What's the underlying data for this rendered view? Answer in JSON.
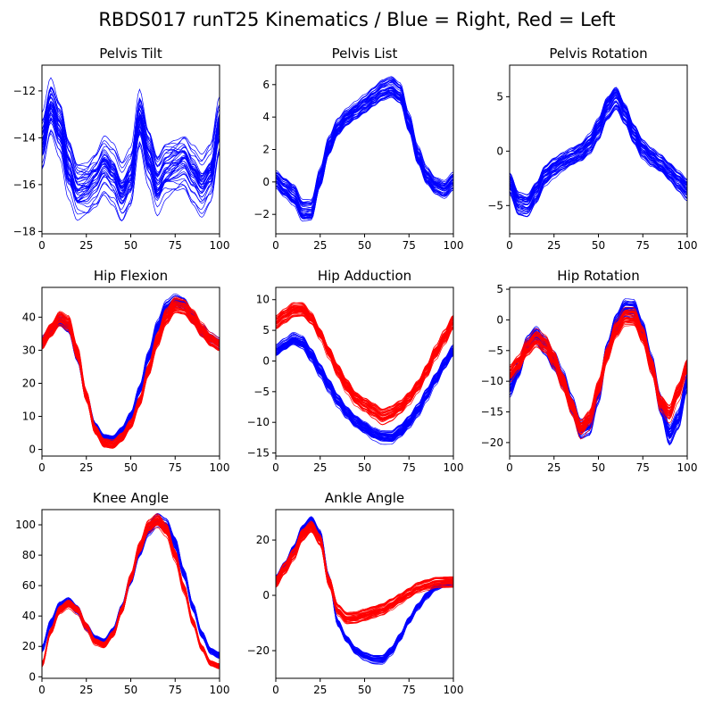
{
  "figure": {
    "title": "RBDS017 runT25 Kinematics / Blue = Right, Red = Left",
    "colors": {
      "right": "#0000ff",
      "left": "#ff0000"
    }
  },
  "chart_data": [
    {
      "type": "line",
      "title": "Pelvis Tilt",
      "xlim": [
        0,
        100
      ],
      "ylim": [
        -18.1,
        -10.9
      ],
      "xticks": [
        0,
        25,
        50,
        75,
        100
      ],
      "yticks": [
        -18,
        -16,
        -14,
        -12
      ],
      "grid": false,
      "n_trials": 40,
      "series": [
        {
          "color": "#0000ff",
          "x": [
            0,
            5,
            10,
            15,
            20,
            25,
            30,
            35,
            40,
            45,
            50,
            55,
            60,
            65,
            70,
            75,
            80,
            85,
            90,
            95,
            100
          ],
          "y": [
            -14.3,
            -12.7,
            -13.6,
            -15.3,
            -16.3,
            -16.2,
            -15.8,
            -15.2,
            -15.6,
            -16.4,
            -15.8,
            -13.2,
            -14.8,
            -16.0,
            -15.4,
            -15.2,
            -15.0,
            -15.6,
            -16.1,
            -15.6,
            -13.6
          ],
          "spread": 0.9
        }
      ]
    },
    {
      "type": "line",
      "title": "Pelvis List",
      "xlim": [
        0,
        100
      ],
      "ylim": [
        -3.2,
        7.2
      ],
      "xticks": [
        0,
        25,
        50,
        75,
        100
      ],
      "yticks": [
        -2,
        0,
        2,
        4,
        6
      ],
      "grid": false,
      "n_trials": 40,
      "series": [
        {
          "color": "#0000ff",
          "x": [
            0,
            5,
            10,
            15,
            20,
            25,
            30,
            35,
            40,
            45,
            50,
            55,
            60,
            65,
            70,
            75,
            80,
            85,
            90,
            95,
            100
          ],
          "y": [
            0.2,
            -0.3,
            -0.8,
            -1.8,
            -1.8,
            0.2,
            2.2,
            3.4,
            4.0,
            4.4,
            4.8,
            5.2,
            5.6,
            5.8,
            5.4,
            3.6,
            1.6,
            0.4,
            -0.2,
            -0.4,
            0.1
          ],
          "spread": 0.5
        }
      ]
    },
    {
      "type": "line",
      "title": "Pelvis Rotation",
      "xlim": [
        0,
        100
      ],
      "ylim": [
        -7.6,
        7.9
      ],
      "xticks": [
        0,
        25,
        50,
        75,
        100
      ],
      "yticks": [
        -5,
        0,
        5
      ],
      "grid": false,
      "n_trials": 40,
      "series": [
        {
          "color": "#0000ff",
          "x": [
            0,
            5,
            10,
            15,
            20,
            25,
            30,
            35,
            40,
            45,
            50,
            55,
            60,
            65,
            70,
            75,
            80,
            85,
            90,
            95,
            100
          ],
          "y": [
            -3.0,
            -4.8,
            -5.0,
            -3.8,
            -2.2,
            -1.5,
            -1.0,
            -0.6,
            -0.2,
            0.6,
            2.0,
            4.0,
            5.0,
            3.5,
            1.6,
            0.2,
            -0.6,
            -1.2,
            -2.0,
            -2.8,
            -3.6
          ],
          "spread": 0.8
        }
      ]
    },
    {
      "type": "line",
      "title": "Hip Flexion",
      "xlim": [
        0,
        100
      ],
      "ylim": [
        -2,
        49
      ],
      "xticks": [
        0,
        25,
        50,
        75,
        100
      ],
      "yticks": [
        0,
        10,
        20,
        30,
        40
      ],
      "grid": false,
      "n_trials": 40,
      "series": [
        {
          "color": "#0000ff",
          "x": [
            0,
            5,
            10,
            15,
            20,
            25,
            30,
            35,
            40,
            45,
            50,
            55,
            60,
            65,
            70,
            75,
            80,
            85,
            90,
            95,
            100
          ],
          "y": [
            32.5,
            36.0,
            39.0,
            37.0,
            28.0,
            16.0,
            7.0,
            3.5,
            3.0,
            5.5,
            10.0,
            18.0,
            28.0,
            37.0,
            43.0,
            45.0,
            44.0,
            40.0,
            36.0,
            33.5,
            32.0
          ],
          "spread": 0.9
        },
        {
          "color": "#ff0000",
          "x": [
            0,
            5,
            10,
            15,
            20,
            25,
            30,
            35,
            40,
            45,
            50,
            55,
            60,
            65,
            70,
            75,
            80,
            85,
            90,
            95,
            100
          ],
          "y": [
            32.0,
            36.0,
            39.5,
            38.0,
            29.0,
            16.0,
            6.0,
            2.0,
            1.5,
            3.5,
            7.5,
            14.5,
            24.0,
            33.0,
            40.0,
            43.5,
            43.0,
            40.0,
            36.0,
            33.0,
            31.5
          ],
          "spread": 1.0
        }
      ]
    },
    {
      "type": "line",
      "title": "Hip Adduction",
      "xlim": [
        0,
        100
      ],
      "ylim": [
        -15.5,
        12
      ],
      "xticks": [
        0,
        25,
        50,
        75,
        100
      ],
      "yticks": [
        -15,
        -10,
        -5,
        0,
        5,
        10
      ],
      "grid": false,
      "n_trials": 40,
      "series": [
        {
          "color": "#0000ff",
          "x": [
            0,
            5,
            10,
            15,
            20,
            25,
            30,
            35,
            40,
            45,
            50,
            55,
            60,
            65,
            70,
            75,
            80,
            85,
            90,
            95,
            100
          ],
          "y": [
            1.5,
            2.5,
            3.5,
            3.0,
            1.0,
            -1.5,
            -4.0,
            -6.5,
            -8.5,
            -10.0,
            -11.0,
            -12.0,
            -12.5,
            -12.5,
            -11.5,
            -10.0,
            -8.0,
            -5.5,
            -3.0,
            -0.5,
            1.5
          ],
          "spread": 0.9
        },
        {
          "color": "#ff0000",
          "x": [
            0,
            5,
            10,
            15,
            20,
            25,
            30,
            35,
            40,
            45,
            50,
            55,
            60,
            65,
            70,
            75,
            80,
            85,
            90,
            95,
            100
          ],
          "y": [
            6.5,
            7.5,
            8.5,
            8.5,
            7.0,
            4.5,
            1.5,
            -1.5,
            -4.0,
            -6.0,
            -7.0,
            -8.0,
            -9.0,
            -8.5,
            -7.5,
            -6.0,
            -4.0,
            -1.5,
            1.5,
            4.0,
            6.5
          ],
          "spread": 0.9
        }
      ]
    },
    {
      "type": "line",
      "title": "Hip Rotation",
      "xlim": [
        0,
        100
      ],
      "ylim": [
        -22.2,
        5.3
      ],
      "xticks": [
        0,
        25,
        50,
        75,
        100
      ],
      "yticks": [
        -20,
        -15,
        -10,
        -5,
        0,
        5
      ],
      "grid": false,
      "n_trials": 40,
      "series": [
        {
          "color": "#0000ff",
          "x": [
            0,
            5,
            10,
            15,
            20,
            25,
            30,
            35,
            40,
            45,
            50,
            55,
            60,
            65,
            70,
            75,
            80,
            85,
            90,
            95,
            100
          ],
          "y": [
            -11.0,
            -8.0,
            -4.0,
            -2.5,
            -4.0,
            -6.5,
            -9.5,
            -13.5,
            -17.5,
            -17.0,
            -12.0,
            -5.0,
            -0.5,
            2.0,
            2.0,
            -1.5,
            -7.0,
            -13.5,
            -18.5,
            -16.0,
            -10.0
          ],
          "spread": 1.2
        },
        {
          "color": "#ff0000",
          "x": [
            0,
            5,
            10,
            15,
            20,
            25,
            30,
            35,
            40,
            45,
            50,
            55,
            60,
            65,
            70,
            75,
            80,
            85,
            90,
            95,
            100
          ],
          "y": [
            -8.5,
            -7.0,
            -4.5,
            -3.0,
            -4.0,
            -6.5,
            -10.0,
            -14.0,
            -17.5,
            -16.0,
            -11.0,
            -5.5,
            -1.5,
            0.5,
            0.5,
            -2.5,
            -7.5,
            -13.5,
            -15.0,
            -11.5,
            -7.5
          ],
          "spread": 1.2
        }
      ]
    },
    {
      "type": "line",
      "title": "Knee Angle",
      "xlim": [
        0,
        100
      ],
      "ylim": [
        -1,
        110
      ],
      "xticks": [
        0,
        25,
        50,
        75,
        100
      ],
      "yticks": [
        0,
        20,
        40,
        60,
        80,
        100
      ],
      "grid": false,
      "n_trials": 40,
      "series": [
        {
          "color": "#0000ff",
          "x": [
            0,
            5,
            10,
            15,
            20,
            25,
            30,
            35,
            40,
            45,
            50,
            55,
            60,
            65,
            70,
            75,
            80,
            85,
            90,
            95,
            100
          ],
          "y": [
            18,
            35,
            46,
            49,
            44,
            33,
            25,
            23,
            30,
            45,
            64,
            83,
            97,
            103,
            100,
            88,
            68,
            46,
            28,
            17,
            14
          ],
          "spread": 1.5
        },
        {
          "color": "#ff0000",
          "x": [
            0,
            5,
            10,
            15,
            20,
            25,
            30,
            35,
            40,
            45,
            50,
            55,
            60,
            65,
            70,
            75,
            80,
            85,
            90,
            95,
            100
          ],
          "y": [
            8,
            30,
            44,
            48,
            44,
            33,
            23,
            21,
            28,
            44,
            65,
            85,
            99,
            103,
            97,
            80,
            58,
            36,
            19,
            9,
            7
          ],
          "spread": 1.5
        }
      ]
    },
    {
      "type": "line",
      "title": "Ankle Angle",
      "xlim": [
        0,
        100
      ],
      "ylim": [
        -30,
        31
      ],
      "xticks": [
        0,
        25,
        50,
        75,
        100
      ],
      "yticks": [
        -20,
        0,
        20
      ],
      "grid": false,
      "n_trials": 40,
      "series": [
        {
          "color": "#0000ff",
          "x": [
            0,
            5,
            10,
            15,
            20,
            25,
            30,
            35,
            40,
            45,
            50,
            55,
            60,
            65,
            70,
            75,
            80,
            85,
            90,
            95,
            100
          ],
          "y": [
            6,
            11,
            17,
            24,
            27,
            22,
            6,
            -10,
            -16,
            -20,
            -22,
            -23,
            -23,
            -20,
            -15,
            -9,
            -4,
            0,
            3,
            4,
            4
          ],
          "spread": 1.0
        },
        {
          "color": "#ff0000",
          "x": [
            0,
            5,
            10,
            15,
            20,
            25,
            30,
            35,
            40,
            45,
            50,
            55,
            60,
            65,
            70,
            75,
            80,
            85,
            90,
            95,
            100
          ],
          "y": [
            5,
            10,
            15,
            22,
            25,
            20,
            5,
            -5,
            -8,
            -8,
            -7,
            -6,
            -5,
            -3,
            -1,
            1,
            3,
            4,
            5,
            5,
            5
          ],
          "spread": 1.6
        }
      ]
    }
  ]
}
